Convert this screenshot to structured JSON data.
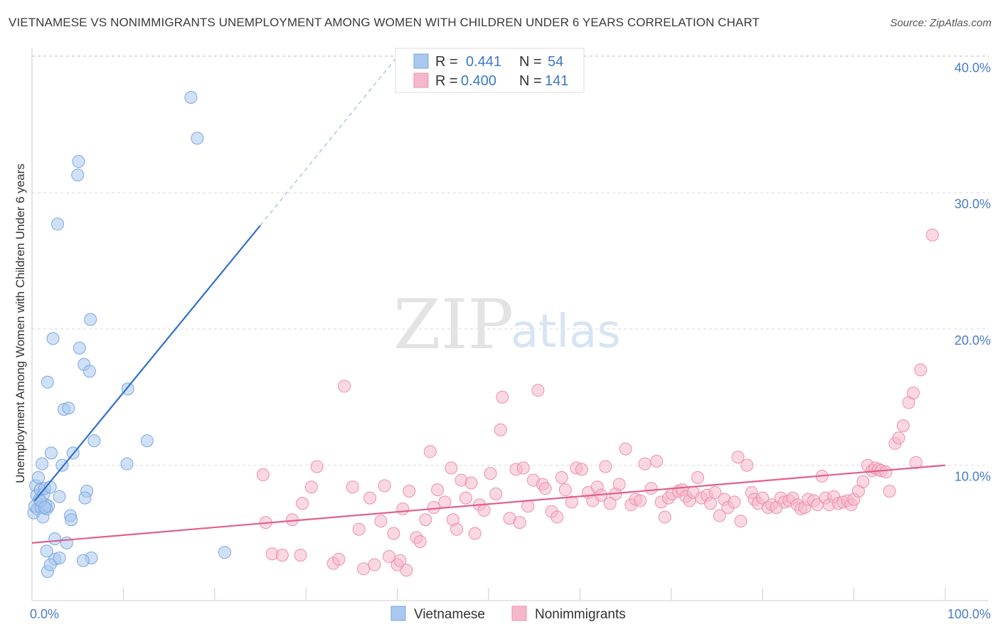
{
  "title": "VIETNAMESE VS NONIMMIGRANTS UNEMPLOYMENT AMONG WOMEN WITH CHILDREN UNDER 6 YEARS CORRELATION CHART",
  "source": "Source: ZipAtlas.com",
  "watermark": {
    "zip": "ZIP",
    "atlas": "atlas"
  },
  "legend": {
    "rows": [
      {
        "r_label": "R =",
        "r_value": "0.441",
        "n_label": "N =",
        "n_value": "54"
      },
      {
        "r_label": "R =",
        "r_value": "0.400",
        "n_label": "N =",
        "n_value": "141"
      }
    ]
  },
  "bottom_legend": [
    "Vietnamese",
    "Nonimmigrants"
  ],
  "chart_data": {
    "type": "scatter",
    "xlabel": "",
    "ylabel": "Unemployment Among Women with Children Under 6 years",
    "xlim": [
      0,
      100
    ],
    "ylim": [
      0,
      41
    ],
    "x_ticks": [
      {
        "value": 0,
        "label": "0.0%"
      },
      {
        "value": 100,
        "label": "100.0%"
      }
    ],
    "y_ticks": [
      {
        "value": 10,
        "label": "10.0%"
      },
      {
        "value": 20,
        "label": "20.0%"
      },
      {
        "value": 30,
        "label": "30.0%"
      },
      {
        "value": 40,
        "label": "40.0%"
      }
    ],
    "grid": "horizontal dashed",
    "legend_position": "top-center",
    "colors": {
      "vietnamese_fill": "#a9c8f0",
      "vietnamese_stroke": "#7aa6e0",
      "vietnamese_line": "#2f6fd0",
      "nonimmigrants_fill": "#f5b8cb",
      "nonimmigrants_stroke": "#ec8fae",
      "nonimmigrants_line": "#e0608c"
    },
    "series": [
      {
        "name": "Vietnamese",
        "trend": {
          "x0": 0.3,
          "y0": 7.4,
          "x1": 25,
          "y1": 27.6,
          "dash_to_x": 40,
          "dash_to_y": 40.0
        },
        "points": [
          [
            0.2,
            6.5
          ],
          [
            0.3,
            7.0
          ],
          [
            0.4,
            8.5
          ],
          [
            0.5,
            7.8
          ],
          [
            0.6,
            6.8
          ],
          [
            0.7,
            9.1
          ],
          [
            0.8,
            7.5
          ],
          [
            0.9,
            8.2
          ],
          [
            1.0,
            6.9
          ],
          [
            1.1,
            10.1
          ],
          [
            1.2,
            6.2
          ],
          [
            1.3,
            7.9
          ],
          [
            1.4,
            8.3
          ],
          [
            1.5,
            7.1
          ],
          [
            1.6,
            6.8
          ],
          [
            1.7,
            16.1
          ],
          [
            1.8,
            7.0
          ],
          [
            2.0,
            8.4
          ],
          [
            2.1,
            10.9
          ],
          [
            2.3,
            19.3
          ],
          [
            2.5,
            3.1
          ],
          [
            2.8,
            27.7
          ],
          [
            3.0,
            7.7
          ],
          [
            3.3,
            10.0
          ],
          [
            3.5,
            14.1
          ],
          [
            3.8,
            4.3
          ],
          [
            4.0,
            14.2
          ],
          [
            4.2,
            6.3
          ],
          [
            4.3,
            6.0
          ],
          [
            4.5,
            10.9
          ],
          [
            5.1,
            32.3
          ],
          [
            5.0,
            31.3
          ],
          [
            5.2,
            18.6
          ],
          [
            5.7,
            17.4
          ],
          [
            6.0,
            8.1
          ],
          [
            6.3,
            16.9
          ],
          [
            6.4,
            20.7
          ],
          [
            6.5,
            3.2
          ],
          [
            6.8,
            11.8
          ],
          [
            5.8,
            7.6
          ],
          [
            1.6,
            3.7
          ],
          [
            1.7,
            2.2
          ],
          [
            2.0,
            2.7
          ],
          [
            2.5,
            4.6
          ],
          [
            3.0,
            3.2
          ],
          [
            5.6,
            3.0
          ],
          [
            10.5,
            15.6
          ],
          [
            10.4,
            10.1
          ],
          [
            12.6,
            11.8
          ],
          [
            17.4,
            37.0
          ],
          [
            18.1,
            34.0
          ],
          [
            21.1,
            3.6
          ],
          [
            0.9,
            7.4
          ],
          [
            1.4,
            6.9
          ]
        ]
      },
      {
        "name": "Nonimmigrants",
        "trend": {
          "x0": 0,
          "y0": 4.3,
          "x1": 100,
          "y1": 10.0
        },
        "points": [
          [
            25.3,
            9.3
          ],
          [
            25.6,
            5.8
          ],
          [
            26.3,
            3.5
          ],
          [
            27.4,
            3.4
          ],
          [
            28.5,
            6.0
          ],
          [
            29.4,
            3.4
          ],
          [
            29.6,
            7.2
          ],
          [
            30.6,
            8.4
          ],
          [
            31.2,
            9.9
          ],
          [
            33.0,
            2.8
          ],
          [
            33.6,
            3.1
          ],
          [
            34.2,
            15.8
          ],
          [
            35.1,
            8.4
          ],
          [
            35.8,
            5.3
          ],
          [
            36.3,
            2.4
          ],
          [
            37.0,
            7.6
          ],
          [
            37.5,
            2.7
          ],
          [
            38.2,
            5.9
          ],
          [
            38.6,
            8.5
          ],
          [
            39.1,
            3.3
          ],
          [
            39.6,
            5.0
          ],
          [
            40.0,
            2.7
          ],
          [
            40.3,
            3.0
          ],
          [
            40.6,
            6.8
          ],
          [
            41.0,
            2.3
          ],
          [
            41.3,
            8.1
          ],
          [
            42.1,
            4.7
          ],
          [
            42.5,
            4.4
          ],
          [
            43.1,
            6.0
          ],
          [
            43.6,
            11.0
          ],
          [
            44.0,
            6.9
          ],
          [
            44.4,
            8.2
          ],
          [
            45.2,
            7.3
          ],
          [
            45.9,
            9.8
          ],
          [
            46.1,
            6.0
          ],
          [
            46.5,
            5.3
          ],
          [
            47.0,
            8.9
          ],
          [
            47.5,
            7.6
          ],
          [
            48.1,
            8.7
          ],
          [
            48.5,
            5.0
          ],
          [
            49.0,
            7.1
          ],
          [
            49.5,
            6.7
          ],
          [
            50.2,
            9.4
          ],
          [
            50.8,
            7.9
          ],
          [
            51.3,
            12.6
          ],
          [
            51.5,
            15.0
          ],
          [
            52.3,
            6.1
          ],
          [
            53.0,
            9.7
          ],
          [
            53.4,
            5.8
          ],
          [
            53.8,
            9.8
          ],
          [
            54.3,
            7.0
          ],
          [
            54.9,
            8.9
          ],
          [
            55.4,
            15.5
          ],
          [
            55.9,
            8.6
          ],
          [
            56.2,
            8.3
          ],
          [
            56.9,
            6.6
          ],
          [
            57.5,
            6.2
          ],
          [
            58.0,
            9.1
          ],
          [
            58.4,
            8.2
          ],
          [
            59.1,
            7.3
          ],
          [
            59.6,
            9.8
          ],
          [
            60.2,
            9.7
          ],
          [
            60.9,
            8.0
          ],
          [
            61.4,
            7.4
          ],
          [
            61.9,
            8.4
          ],
          [
            62.3,
            7.8
          ],
          [
            62.8,
            9.9
          ],
          [
            63.3,
            7.2
          ],
          [
            63.9,
            7.9
          ],
          [
            64.3,
            8.6
          ],
          [
            65.0,
            11.2
          ],
          [
            65.6,
            7.1
          ],
          [
            66.1,
            7.5
          ],
          [
            66.6,
            7.4
          ],
          [
            67.1,
            10.1
          ],
          [
            67.8,
            8.3
          ],
          [
            68.4,
            10.3
          ],
          [
            68.9,
            7.3
          ],
          [
            69.3,
            6.2
          ],
          [
            69.7,
            7.6
          ],
          [
            70.1,
            7.9
          ],
          [
            70.8,
            8.1
          ],
          [
            71.2,
            8.2
          ],
          [
            71.6,
            7.7
          ],
          [
            72.0,
            7.4
          ],
          [
            72.4,
            8.0
          ],
          [
            72.9,
            9.1
          ],
          [
            73.3,
            7.6
          ],
          [
            73.9,
            7.8
          ],
          [
            74.3,
            7.2
          ],
          [
            74.8,
            8.0
          ],
          [
            75.3,
            6.3
          ],
          [
            75.8,
            7.5
          ],
          [
            76.2,
            6.9
          ],
          [
            76.9,
            7.3
          ],
          [
            77.3,
            10.6
          ],
          [
            77.6,
            5.9
          ],
          [
            78.3,
            10.0
          ],
          [
            78.8,
            8.0
          ],
          [
            79.1,
            7.5
          ],
          [
            79.5,
            7.2
          ],
          [
            80.0,
            7.6
          ],
          [
            80.6,
            6.9
          ],
          [
            81.0,
            7.1
          ],
          [
            81.5,
            6.9
          ],
          [
            82.0,
            7.6
          ],
          [
            82.4,
            7.3
          ],
          [
            82.9,
            7.4
          ],
          [
            83.3,
            7.6
          ],
          [
            83.8,
            7.1
          ],
          [
            84.2,
            6.8
          ],
          [
            84.6,
            6.9
          ],
          [
            85.0,
            7.5
          ],
          [
            85.6,
            7.4
          ],
          [
            86.0,
            7.1
          ],
          [
            86.5,
            9.2
          ],
          [
            86.9,
            7.6
          ],
          [
            87.3,
            7.1
          ],
          [
            87.8,
            7.7
          ],
          [
            88.3,
            7.2
          ],
          [
            88.8,
            7.3
          ],
          [
            89.3,
            7.4
          ],
          [
            89.7,
            7.1
          ],
          [
            90.0,
            7.5
          ],
          [
            90.5,
            8.1
          ],
          [
            91.0,
            8.8
          ],
          [
            91.5,
            10.0
          ],
          [
            92.0,
            9.6
          ],
          [
            92.3,
            9.8
          ],
          [
            92.7,
            9.7
          ],
          [
            93.0,
            9.6
          ],
          [
            93.5,
            9.5
          ],
          [
            93.9,
            8.1
          ],
          [
            94.5,
            11.6
          ],
          [
            94.9,
            12.0
          ],
          [
            95.4,
            12.9
          ],
          [
            96.0,
            14.6
          ],
          [
            96.5,
            15.3
          ],
          [
            96.8,
            10.2
          ],
          [
            97.3,
            17.0
          ],
          [
            98.6,
            26.9
          ]
        ]
      }
    ]
  }
}
